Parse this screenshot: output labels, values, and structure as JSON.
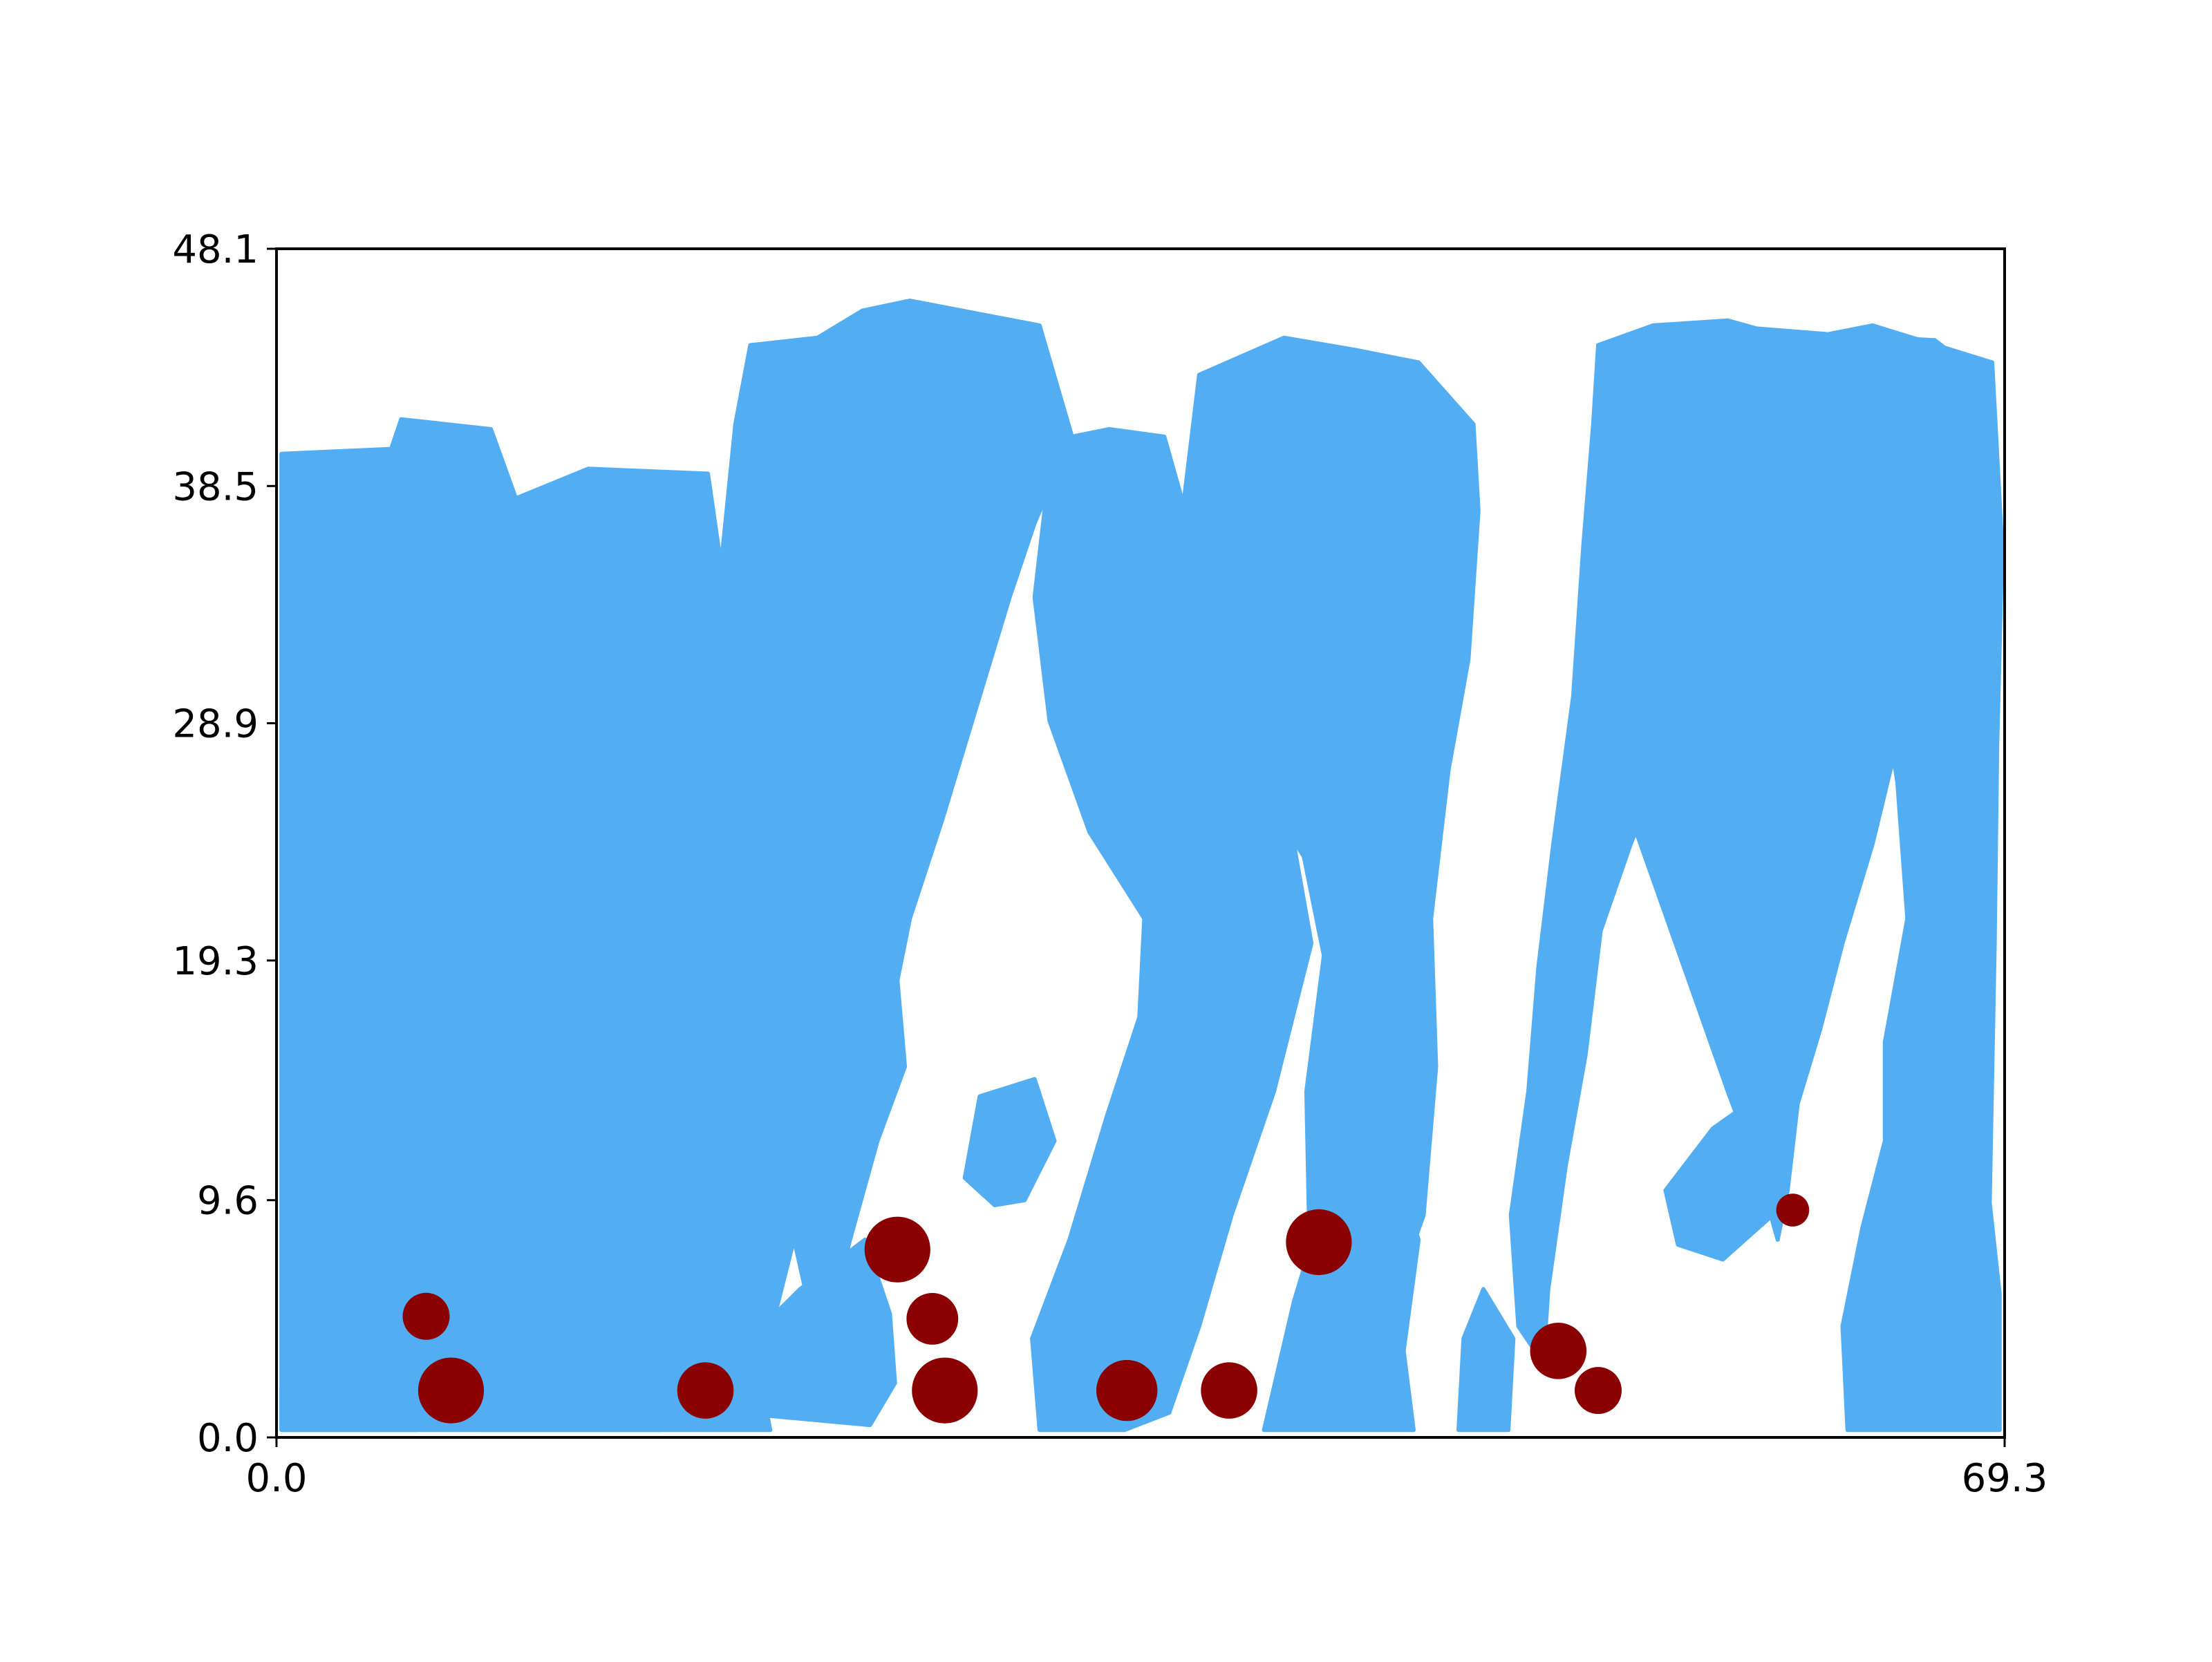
{
  "chart_data": {
    "type": "scatter",
    "title": "",
    "xlabel": "",
    "ylabel": "",
    "xlim": [
      0.0,
      69.3
    ],
    "ylim": [
      0.0,
      48.1
    ],
    "x_ticks": [
      "0.0",
      "69.3"
    ],
    "y_ticks": [
      "0.0",
      "9.6",
      "19.3",
      "28.9",
      "38.5",
      "48.1"
    ],
    "grid": false,
    "legend": "none",
    "colors": {
      "region": "#52adf2",
      "points": "#8b0000",
      "axes": "#000000",
      "background": "#ffffff"
    },
    "background_layer": {
      "description": "blue filled regions (finger-like shapes)",
      "regions": [
        {
          "polygon": [
            [
              0.2,
              0.3
            ],
            [
              0.2,
              39.8
            ],
            [
              4.6,
              40.0
            ],
            [
              5.0,
              41.2
            ],
            [
              8.6,
              40.8
            ],
            [
              9.6,
              38.0
            ],
            [
              12.5,
              39.2
            ],
            [
              17.3,
              39.0
            ],
            [
              17.8,
              35.5
            ],
            [
              20.4,
              32.0
            ],
            [
              21.2,
              27.0
            ],
            [
              23.0,
              21.5
            ],
            [
              24.0,
              16.5
            ],
            [
              22.8,
              12.5
            ],
            [
              21.0,
              9.0
            ],
            [
              20.0,
              5.0
            ],
            [
              19.4,
              2.3
            ],
            [
              19.8,
              0.3
            ]
          ]
        },
        {
          "polygon": [
            [
              19.0,
              44.2
            ],
            [
              21.7,
              44.5
            ],
            [
              23.5,
              45.6
            ],
            [
              25.4,
              46.0
            ],
            [
              30.6,
              45.0
            ],
            [
              31.9,
              40.5
            ],
            [
              30.4,
              37.0
            ],
            [
              29.4,
              34.0
            ],
            [
              28.2,
              30.0
            ],
            [
              26.7,
              25.0
            ],
            [
              25.4,
              21.0
            ],
            [
              24.9,
              18.5
            ],
            [
              25.2,
              15.0
            ],
            [
              24.1,
              12.0
            ],
            [
              23.0,
              8.0
            ],
            [
              22.2,
              4.8
            ],
            [
              22.0,
              2.4
            ],
            [
              21.2,
              6.0
            ],
            [
              20.1,
              11.0
            ],
            [
              19.0,
              15.5
            ],
            [
              18.0,
              22.0
            ],
            [
              17.7,
              30.0
            ],
            [
              17.9,
              36.0
            ],
            [
              18.4,
              41.0
            ]
          ]
        },
        {
          "polygon": [
            [
              31.9,
              40.5
            ],
            [
              33.4,
              40.8
            ],
            [
              35.6,
              40.5
            ],
            [
              36.3,
              38.0
            ],
            [
              36.8,
              33.5
            ],
            [
              37.3,
              30.0
            ],
            [
              38.8,
              27.5
            ],
            [
              40.8,
              24.0
            ],
            [
              41.5,
              20.0
            ],
            [
              40.0,
              14.0
            ],
            [
              38.3,
              9.0
            ],
            [
              37.0,
              4.5
            ],
            [
              35.8,
              1.0
            ],
            [
              34.0,
              0.3
            ],
            [
              30.6,
              0.3
            ],
            [
              30.3,
              4.0
            ],
            [
              31.8,
              8.0
            ],
            [
              33.3,
              13.0
            ],
            [
              34.6,
              17.0
            ],
            [
              34.8,
              21.0
            ],
            [
              32.6,
              24.5
            ],
            [
              31.0,
              29.0
            ],
            [
              30.4,
              34.0
            ],
            [
              30.8,
              37.5
            ]
          ]
        },
        {
          "polygon": [
            [
              37.0,
              43.0
            ],
            [
              40.4,
              44.5
            ],
            [
              43.3,
              44.0
            ],
            [
              45.8,
              43.5
            ],
            [
              48.0,
              41.0
            ],
            [
              48.2,
              37.5
            ],
            [
              47.8,
              31.5
            ],
            [
              47.0,
              27.0
            ],
            [
              46.3,
              21.0
            ],
            [
              46.5,
              15.0
            ],
            [
              46.0,
              9.0
            ],
            [
              44.6,
              5.0
            ],
            [
              43.2,
              3.0
            ],
            [
              42.0,
              4.0
            ],
            [
              41.4,
              9.0
            ],
            [
              41.3,
              14.0
            ],
            [
              42.0,
              19.5
            ],
            [
              41.2,
              23.5
            ],
            [
              39.0,
              27.0
            ],
            [
              37.3,
              30.0
            ],
            [
              36.9,
              34.0
            ],
            [
              36.4,
              38.0
            ]
          ]
        },
        {
          "polygon": [
            [
              53.0,
              44.2
            ],
            [
              55.2,
              45.0
            ],
            [
              58.2,
              45.2
            ],
            [
              61.0,
              44.4
            ],
            [
              64.0,
              45.0
            ],
            [
              68.8,
              43.5
            ],
            [
              69.2,
              36.0
            ],
            [
              69.0,
              28.0
            ],
            [
              68.9,
              20.0
            ],
            [
              68.7,
              9.5
            ],
            [
              69.1,
              5.8
            ],
            [
              69.1,
              0.3
            ],
            [
              63.0,
              0.3
            ],
            [
              62.8,
              4.5
            ],
            [
              63.6,
              8.5
            ],
            [
              64.5,
              12.0
            ],
            [
              64.5,
              16.0
            ],
            [
              65.4,
              21.0
            ],
            [
              65.0,
              26.5
            ],
            [
              64.4,
              30.5
            ],
            [
              63.0,
              34.0
            ],
            [
              61.5,
              38.0
            ],
            [
              60.6,
              40.0
            ],
            [
              59.3,
              36.0
            ],
            [
              57.4,
              33.0
            ],
            [
              55.9,
              28.0
            ],
            [
              54.3,
              24.0
            ],
            [
              53.1,
              20.5
            ],
            [
              52.5,
              15.5
            ],
            [
              51.7,
              11.0
            ],
            [
              51.0,
              6.0
            ],
            [
              50.8,
              3.0
            ],
            [
              49.8,
              4.5
            ],
            [
              49.5,
              9.0
            ],
            [
              50.2,
              14.0
            ],
            [
              50.6,
              19.0
            ],
            [
              51.2,
              24.0
            ],
            [
              52.0,
              30.0
            ],
            [
              52.4,
              36.0
            ],
            [
              52.8,
              41.0
            ]
          ]
        },
        {
          "polygon": [
            [
              53.3,
              41.5
            ],
            [
              54.6,
              44.0
            ],
            [
              56.4,
              44.8
            ],
            [
              59.0,
              44.9
            ],
            [
              62.8,
              44.6
            ],
            [
              66.5,
              44.4
            ],
            [
              68.3,
              43.0
            ],
            [
              68.1,
              39.0
            ],
            [
              66.6,
              34.5
            ],
            [
              65.2,
              29.0
            ],
            [
              64.0,
              24.0
            ],
            [
              62.8,
              20.0
            ],
            [
              61.9,
              16.5
            ],
            [
              61.0,
              13.5
            ],
            [
              60.6,
              10.0
            ],
            [
              60.2,
              8.0
            ],
            [
              59.5,
              10.5
            ],
            [
              58.2,
              14.0
            ],
            [
              56.8,
              18.0
            ],
            [
              55.4,
              22.0
            ],
            [
              54.0,
              26.0
            ],
            [
              53.3,
              31.0
            ],
            [
              53.0,
              36.0
            ]
          ]
        },
        {
          "polygon": [
            [
              55.7,
              10.0
            ],
            [
              57.6,
              12.5
            ],
            [
              59.0,
              13.5
            ],
            [
              60.0,
              9.0
            ],
            [
              58.0,
              7.2
            ],
            [
              56.2,
              7.8
            ]
          ]
        },
        {
          "polygon": [
            [
              0.2,
              0.3
            ],
            [
              0.2,
              2.0
            ],
            [
              2.2,
              3.5
            ],
            [
              1.6,
              8.0
            ],
            [
              2.0,
              12.0
            ],
            [
              3.6,
              7.0
            ],
            [
              4.6,
              3.0
            ],
            [
              5.6,
              0.3
            ]
          ]
        },
        {
          "polygon": [
            [
              8.2,
              0.3
            ],
            [
              8.0,
              3.0
            ],
            [
              9.0,
              8.0
            ],
            [
              10.0,
              10.0
            ],
            [
              11.8,
              8.6
            ],
            [
              13.2,
              10.2
            ],
            [
              15.0,
              7.8
            ],
            [
              14.7,
              4.0
            ],
            [
              15.4,
              0.3
            ]
          ]
        },
        {
          "polygon": [
            [
              18.4,
              1.0
            ],
            [
              19.2,
              4.2
            ],
            [
              21.0,
              6.0
            ],
            [
              23.6,
              8.0
            ],
            [
              24.6,
              5.0
            ],
            [
              24.8,
              2.2
            ],
            [
              23.8,
              0.5
            ]
          ]
        },
        {
          "polygon": [
            [
              39.6,
              0.3
            ],
            [
              40.8,
              5.5
            ],
            [
              42.0,
              9.5
            ],
            [
              44.8,
              11.0
            ],
            [
              45.8,
              8.0
            ],
            [
              45.2,
              3.5
            ],
            [
              45.6,
              0.3
            ]
          ]
        },
        {
          "polygon": [
            [
              47.4,
              0.3
            ],
            [
              47.6,
              4.0
            ],
            [
              48.4,
              6.0
            ],
            [
              49.6,
              4.0
            ],
            [
              49.4,
              0.3
            ]
          ]
        },
        {
          "polygon": [
            [
              27.6,
              10.5
            ],
            [
              28.2,
              13.8
            ],
            [
              30.4,
              14.5
            ],
            [
              31.2,
              12.0
            ],
            [
              30.0,
              9.6
            ],
            [
              28.8,
              9.4
            ]
          ]
        }
      ]
    },
    "series": [
      {
        "type": "scatter",
        "points": [
          {
            "x": 6.0,
            "y": 4.9,
            "size": 1.0
          },
          {
            "x": 7.0,
            "y": 1.9,
            "size": 1.4
          },
          {
            "x": 17.2,
            "y": 1.9,
            "size": 1.2
          },
          {
            "x": 24.9,
            "y": 7.6,
            "size": 1.4
          },
          {
            "x": 26.3,
            "y": 4.8,
            "size": 1.1
          },
          {
            "x": 26.8,
            "y": 1.9,
            "size": 1.4
          },
          {
            "x": 34.1,
            "y": 1.9,
            "size": 1.3
          },
          {
            "x": 38.2,
            "y": 1.9,
            "size": 1.2
          },
          {
            "x": 41.8,
            "y": 7.9,
            "size": 1.4
          },
          {
            "x": 51.4,
            "y": 3.5,
            "size": 1.2
          },
          {
            "x": 53.0,
            "y": 1.9,
            "size": 1.0
          },
          {
            "x": 60.8,
            "y": 9.2,
            "size": 0.7
          }
        ]
      }
    ]
  }
}
